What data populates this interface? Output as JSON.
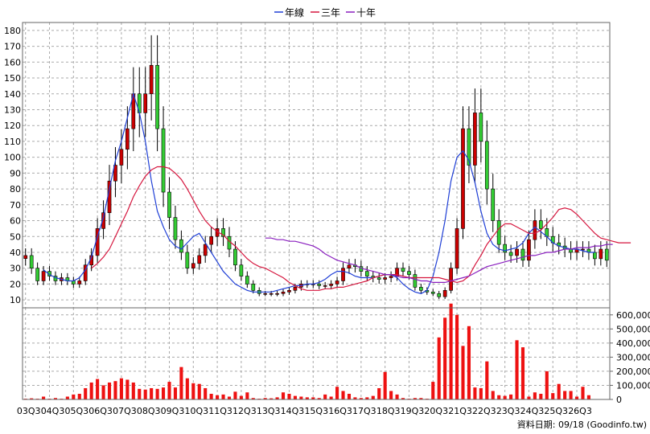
{
  "chart_data": [
    {
      "type": "candlestick",
      "title": "",
      "legend": {
        "placement": "top-center",
        "entries": [
          {
            "label": "年線",
            "color": "#1f3fd6"
          },
          {
            "label": "三年",
            "color": "#d6163e"
          },
          {
            "label": "十年",
            "color": "#8a1fbf"
          }
        ]
      },
      "ylim": [
        5,
        185
      ],
      "yticks": [
        10,
        20,
        30,
        40,
        50,
        60,
        70,
        80,
        90,
        100,
        110,
        120,
        130,
        140,
        150,
        160,
        170,
        180
      ],
      "grid": true,
      "up_color": "#cc0000",
      "down_color": "#33cc33",
      "x_start_quarter": "2003Q3",
      "xtick_labels": [
        "03Q3",
        "04Q3",
        "05Q3",
        "06Q3",
        "07Q3",
        "08Q3",
        "09Q3",
        "10Q3",
        "11Q3",
        "12Q3",
        "13Q3",
        "14Q3",
        "15Q3",
        "16Q3",
        "17Q3",
        "18Q3",
        "19Q3",
        "20Q3",
        "21Q3",
        "22Q3",
        "23Q3",
        "24Q3",
        "25Q3",
        "26Q3"
      ],
      "close": [
        38,
        30,
        22,
        28,
        25,
        22,
        24,
        22,
        20,
        22,
        32,
        38,
        55,
        65,
        85,
        95,
        105,
        118,
        140,
        128,
        140,
        158,
        118,
        78,
        62,
        48,
        40,
        30,
        33,
        38,
        45,
        50,
        55,
        50,
        42,
        32,
        25,
        20,
        16,
        14,
        14,
        14,
        14,
        15,
        16,
        18,
        20,
        20,
        20,
        19,
        19,
        20,
        22,
        30,
        32,
        31,
        28,
        25,
        24,
        23,
        24,
        25,
        30,
        28,
        26,
        18,
        16,
        15,
        14,
        12,
        16,
        30,
        55,
        118,
        95,
        128,
        110,
        80,
        60,
        45,
        40,
        38,
        42,
        35,
        48,
        60,
        55,
        50,
        46,
        44,
        42,
        40,
        42,
        42,
        40,
        36,
        42,
        35
      ],
      "moving_averages": [
        {
          "name": "年線",
          "color": "#1f3fd6",
          "start": 3,
          "values": [
            29,
            26,
            24,
            23,
            22,
            22,
            24,
            29,
            37,
            50,
            62,
            80,
            98,
            110,
            125,
            140,
            128,
            110,
            85,
            66,
            56,
            48,
            44,
            42,
            46,
            50,
            52,
            46,
            40,
            34,
            28,
            24,
            20,
            18,
            16,
            15,
            15,
            15,
            15,
            16,
            17,
            18,
            19,
            19,
            20,
            20,
            21,
            23,
            26,
            28,
            28,
            27,
            25,
            24,
            24,
            24,
            25,
            26,
            26,
            24,
            20,
            17,
            15,
            14,
            16,
            25,
            40,
            60,
            85,
            100,
            104,
            98,
            84,
            66,
            52,
            45,
            42,
            41,
            42,
            43,
            46,
            52,
            56,
            53,
            50,
            46,
            44,
            43,
            42,
            42,
            41,
            40,
            40
          ]
        },
        {
          "name": "三年",
          "color": "#d6163e",
          "start": 11,
          "values": [
            30,
            33,
            37,
            42,
            50,
            58,
            66,
            75,
            82,
            88,
            92,
            94,
            94,
            93,
            90,
            86,
            80,
            73,
            66,
            60,
            56,
            53,
            51,
            47,
            44,
            40,
            36,
            33,
            31,
            30,
            28,
            26,
            24,
            21,
            19,
            17,
            16,
            16,
            16,
            17,
            17,
            18,
            18,
            19,
            20,
            21,
            22,
            24,
            25,
            26,
            26,
            26,
            25,
            24,
            24,
            24,
            24,
            24,
            24,
            23,
            22,
            21,
            22,
            25,
            32,
            38,
            45,
            50,
            55,
            58,
            58,
            56,
            54,
            52,
            52,
            54,
            58,
            62,
            67,
            68,
            67,
            64,
            60,
            56,
            52,
            49,
            48,
            47,
            46,
            46,
            46
          ]
        },
        {
          "name": "十年",
          "color": "#8a1fbf",
          "start": 40,
          "values": [
            49,
            49,
            48,
            48,
            47,
            47,
            46,
            45,
            44,
            42,
            39,
            37,
            35,
            34,
            33,
            32,
            30,
            29,
            28,
            27,
            26,
            26,
            25,
            24,
            24,
            23,
            22,
            22,
            21,
            21,
            21,
            22,
            23,
            24,
            25,
            27,
            29,
            31,
            32,
            33,
            34,
            35,
            36,
            37,
            38,
            38,
            39,
            40,
            40,
            41,
            42,
            42,
            43,
            43,
            43,
            44,
            44,
            45,
            45
          ]
        }
      ]
    },
    {
      "type": "bar",
      "title": "",
      "color": "#ee1111",
      "ylim": [
        0,
        650000
      ],
      "ytick_labels": [
        "600,000",
        "500,000",
        "400,000",
        "300,000",
        "200,000",
        "100,000",
        "0"
      ],
      "ytick_values": [
        600000,
        500000,
        400000,
        300000,
        200000,
        100000,
        0
      ],
      "grid": true,
      "values": [
        5000,
        8000,
        5000,
        20000,
        5000,
        10000,
        5000,
        20000,
        35000,
        40000,
        80000,
        120000,
        145000,
        100000,
        120000,
        130000,
        150000,
        140000,
        120000,
        75000,
        70000,
        80000,
        75000,
        85000,
        125000,
        85000,
        230000,
        150000,
        115000,
        110000,
        80000,
        40000,
        30000,
        35000,
        20000,
        55000,
        25000,
        50000,
        10000,
        5000,
        10000,
        8000,
        15000,
        50000,
        40000,
        25000,
        20000,
        15000,
        15000,
        10000,
        35000,
        20000,
        90000,
        60000,
        40000,
        15000,
        10000,
        15000,
        25000,
        80000,
        195000,
        60000,
        35000,
        10000,
        5000,
        10000,
        10000,
        5000,
        125000,
        440000,
        580000,
        680000,
        600000,
        380000,
        520000,
        85000,
        80000,
        270000,
        60000,
        30000,
        25000,
        35000,
        420000,
        370000,
        20000,
        50000,
        40000,
        200000,
        45000,
        110000,
        60000,
        60000,
        20000,
        90000,
        30000
      ]
    }
  ],
  "footer": {
    "source": "資料日期: 09/18  (Goodinfo.tw)"
  }
}
